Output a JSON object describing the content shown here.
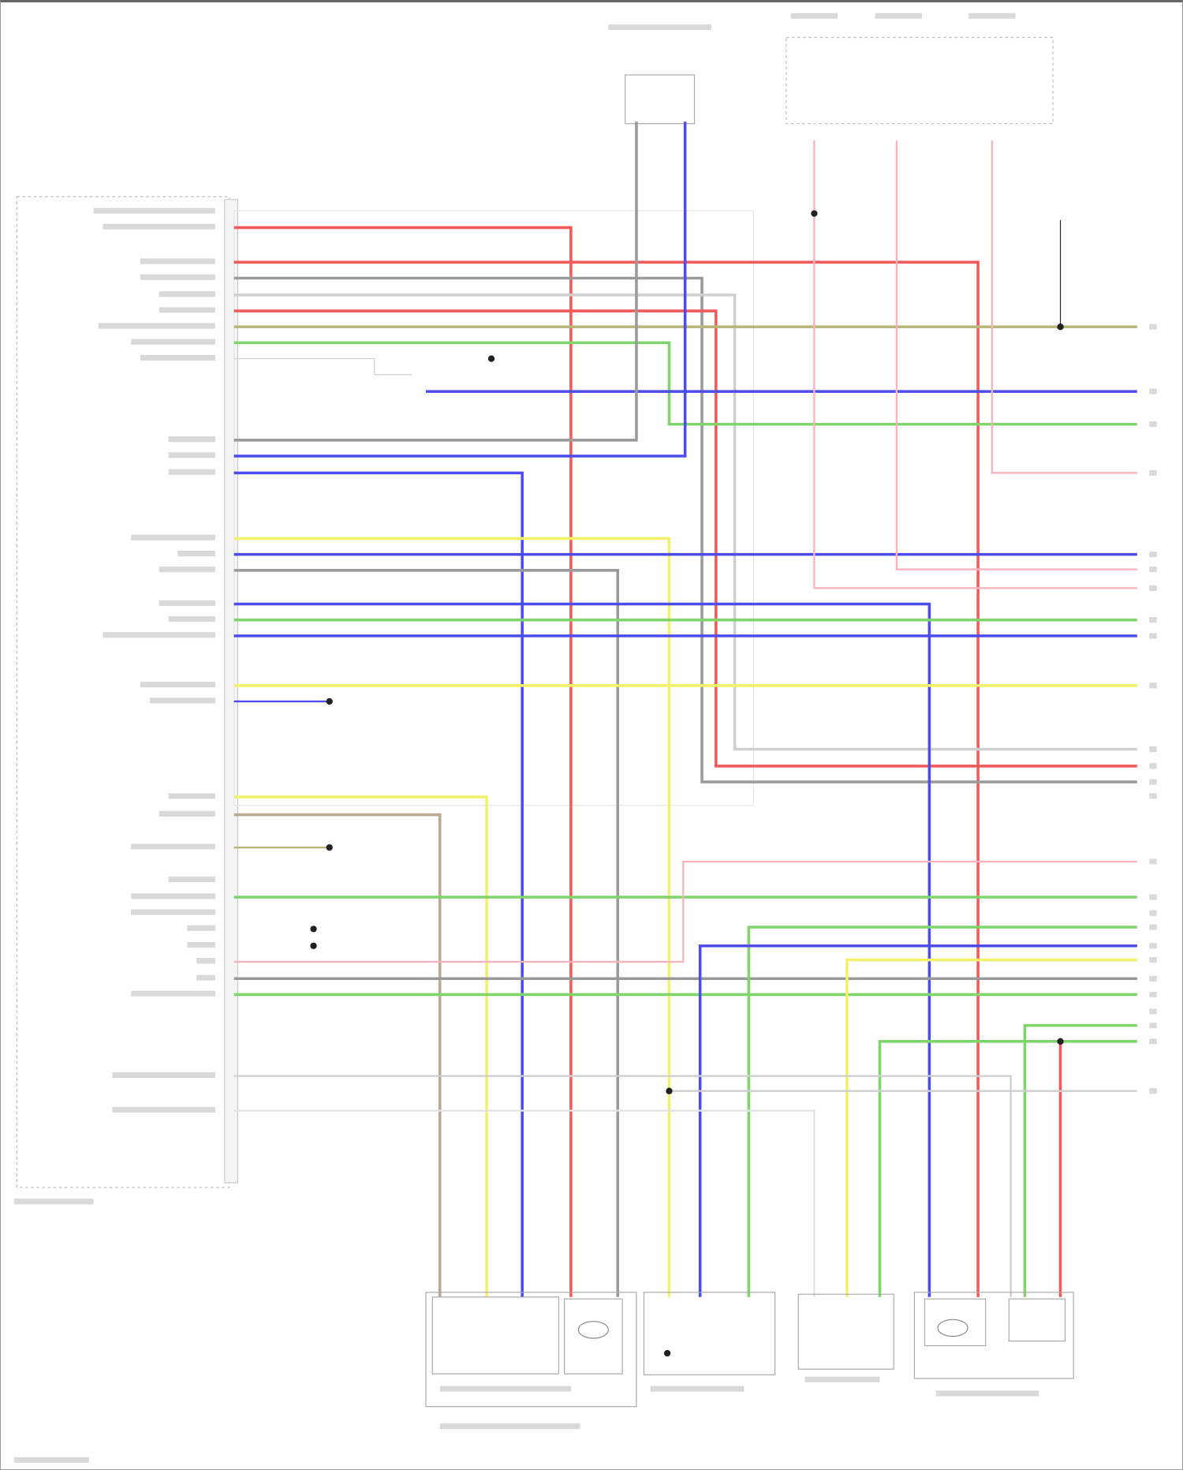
{
  "diagram": {
    "type": "wiring-diagram",
    "wire_colors": {
      "red": "#f05a5a",
      "pink": "#f7b4bd",
      "gray": "#9a9a9a",
      "light_gray": "#cfcfcf",
      "blue": "#4c4cf0",
      "green": "#7fd46a",
      "olive": "#b9b77a",
      "yellow": "#f2f26a",
      "tan": "#b8a990",
      "black": "#222222"
    },
    "note": ""
  }
}
